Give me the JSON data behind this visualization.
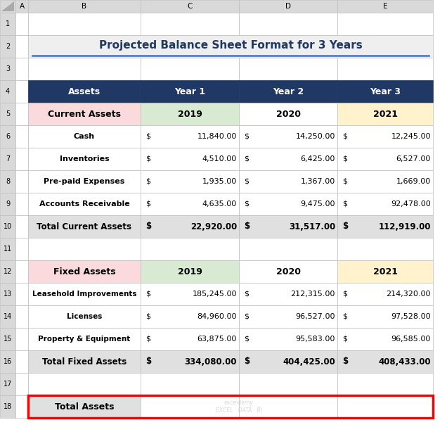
{
  "title": "Projected Balance Sheet Format for 3 Years",
  "title_color": "#1F3864",
  "title_fontsize": 11,
  "header_bg": "#1F3864",
  "header_fg": "#FFFFFF",
  "row1_label_bg": "#FADADD",
  "row1_col1_bg": "#D9EAD3",
  "row1_col2_bg": "#FFFFFF",
  "row1_col3_bg": "#FFF2CC",
  "total_bg": "#E0E0E0",
  "white_bg": "#FFFFFF",
  "section1_header": [
    "Assets",
    "Year 1",
    "Year 2",
    "Year 3"
  ],
  "section1_row0": [
    "Current Assets",
    "2019",
    "2020",
    "2021"
  ],
  "section1_rows": [
    [
      "Cash",
      "$",
      "11,840.00",
      "$",
      "14,250.00",
      "$",
      "12,245.00"
    ],
    [
      "Inventories",
      "$",
      "4,510.00",
      "$",
      "6,425.00",
      "$",
      "6,527.00"
    ],
    [
      "Pre-paid Expenses",
      "$",
      "1,935.00",
      "$",
      "1,367.00",
      "$",
      "1,669.00"
    ],
    [
      "Accounts Receivable",
      "$",
      "4,635.00",
      "$",
      "9,475.00",
      "$",
      "92,478.00"
    ]
  ],
  "section1_total": [
    "Total Current Assets",
    "$",
    "22,920.00",
    "$",
    "31,517.00",
    "$",
    "112,919.00"
  ],
  "section2_header": [
    "Fixed Assets",
    "2019",
    "2020",
    "2021"
  ],
  "section2_rows": [
    [
      "Leasehold Improvements",
      "$",
      "185,245.00",
      "$",
      "212,315.00",
      "$",
      "214,320.00"
    ],
    [
      "Licenses",
      "$",
      "84,960.00",
      "$",
      "96,527.00",
      "$",
      "97,528.00"
    ],
    [
      "Property & Equipment",
      "$",
      "63,875.00",
      "$",
      "95,583.00",
      "$",
      "96,585.00"
    ]
  ],
  "section2_total": [
    "Total Fixed Assets",
    "$",
    "334,080.00",
    "$",
    "404,425.00",
    "$",
    "408,433.00"
  ],
  "footer_row": "Total Assets",
  "excel_col_header_bg": "#D9D9D9",
  "border_color": "#BFBFBF",
  "fig_bg": "#FFFFFF"
}
